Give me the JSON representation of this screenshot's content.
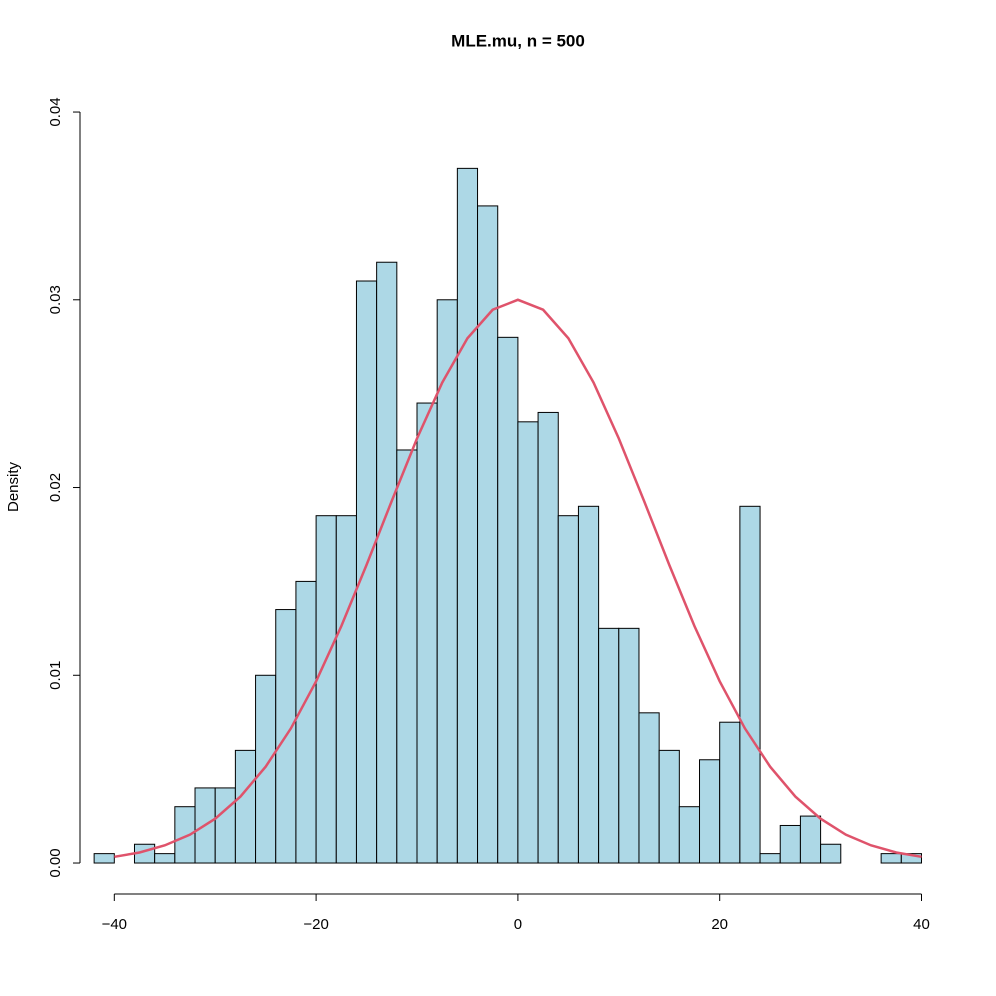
{
  "chart_data": {
    "type": "histogram",
    "title": "MLE.mu, n = 500",
    "y_label": "Density",
    "bins": [
      -42,
      -40,
      -38,
      -36,
      -34,
      -32,
      -30,
      -28,
      -26,
      -24,
      -22,
      -20,
      -18,
      -16,
      -14,
      -12,
      -10,
      -8,
      -6,
      -4,
      -2,
      0,
      2,
      4,
      6,
      8,
      10,
      12,
      14,
      16,
      18,
      20,
      22,
      24,
      26,
      28,
      30,
      32,
      34,
      36,
      38,
      40
    ],
    "values": [
      0.0005,
      0,
      0.001,
      0.0005,
      0.003,
      0.004,
      0.004,
      0.006,
      0.01,
      0.0135,
      0.015,
      0.0185,
      0.0185,
      0.031,
      0.032,
      0.022,
      0.0245,
      0.03,
      0.037,
      0.035,
      0.028,
      0.0235,
      0.024,
      0.0185,
      0.019,
      0.0125,
      0.0125,
      0.008,
      0.006,
      0.003,
      0.0055,
      0.0075,
      0.019,
      0.0005,
      0.002,
      0.0025,
      0.001,
      0,
      0,
      0.0005,
      0.0005
    ],
    "color": "#add8e6",
    "curve": {
      "color": "#df536b",
      "x": [
        -40,
        -37.5,
        -35,
        -32.5,
        -30,
        -27.5,
        -25,
        -22.5,
        -20,
        -17.5,
        -15,
        -12.5,
        -10,
        -7.5,
        -5,
        -2.5,
        0,
        2.5,
        5,
        7.5,
        10,
        12.5,
        15,
        17.5,
        20,
        22.5,
        25,
        27.5,
        30,
        32.5,
        35,
        37.5,
        40
      ],
      "values": [
        0.00033,
        0.00056,
        0.00094,
        0.00151,
        0.00236,
        0.00354,
        0.00513,
        0.00717,
        0.00968,
        0.01262,
        0.01588,
        0.01929,
        0.02261,
        0.02559,
        0.02795,
        0.02947,
        0.03,
        0.02947,
        0.02795,
        0.02559,
        0.02261,
        0.01929,
        0.01588,
        0.01262,
        0.00968,
        0.00717,
        0.00513,
        0.00354,
        0.00236,
        0.00151,
        0.00094,
        0.00056,
        0.00033
      ]
    },
    "xlim": [
      -43.4,
      43.4
    ],
    "ylim": [
      -0.00165,
      0.0416
    ],
    "xticks": [
      {
        "value": -40,
        "label": "−40"
      },
      {
        "value": -20,
        "label": "−20"
      },
      0,
      20,
      40
    ],
    "yticks": [
      {
        "value": 0,
        "label": "0.00"
      },
      0.01,
      0.02,
      0.03,
      0.04
    ]
  }
}
